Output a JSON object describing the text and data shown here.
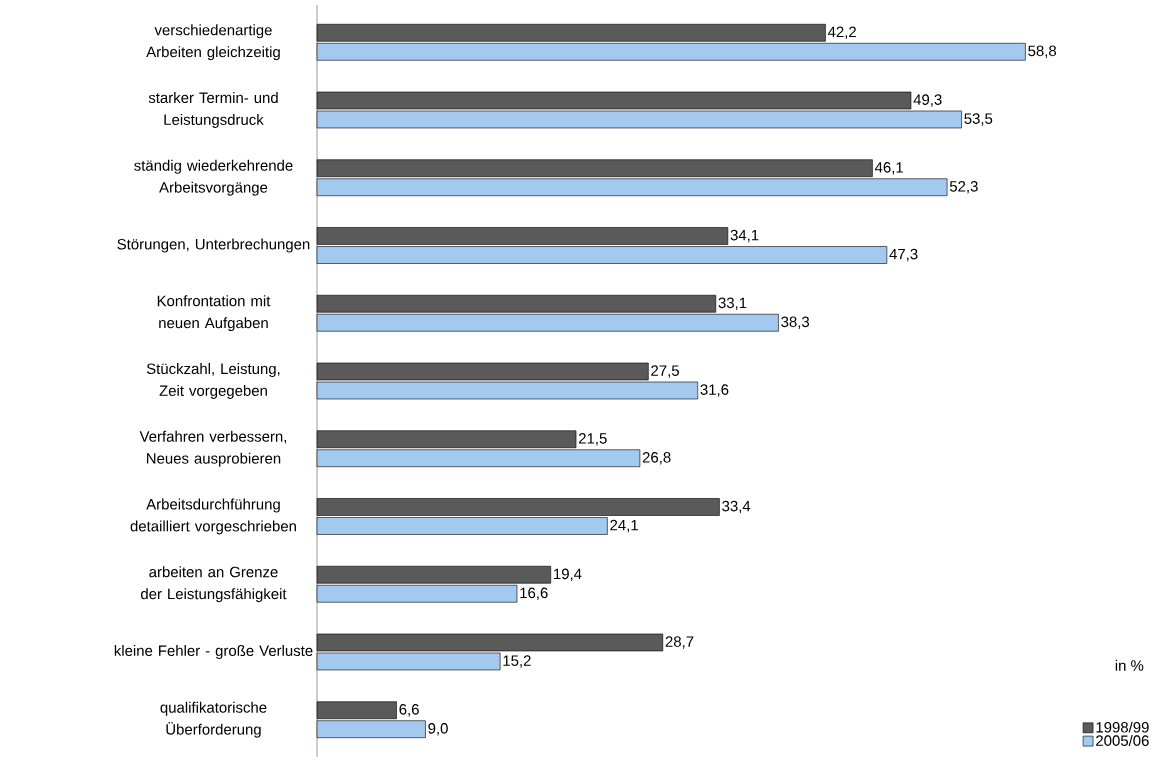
{
  "chart_data": {
    "type": "bar",
    "orientation": "horizontal",
    "categories": [
      "verschiedenartige Arbeiten gleichzeitig",
      "starker Termin- und Leistungsdruck",
      "ständig wiederkehrende Arbeitsvorgänge",
      "Störungen, Unterbrechungen",
      "Konfrontation mit neuen Aufgaben",
      "Stückzahl, Leistung, Zeit vorgegeben",
      "Verfahren verbessern, Neues ausprobieren",
      "Arbeitsdurchführung detailliert vorgeschrieben",
      "arbeiten an Grenze der Leistungsfähigkeit",
      "kleine Fehler - große Verluste",
      "qualifikatorische Überforderung"
    ],
    "series": [
      {
        "name": "1998/99",
        "color": "#5a5a5a",
        "values": [
          42.2,
          49.3,
          46.1,
          34.1,
          33.1,
          27.5,
          21.5,
          33.4,
          19.4,
          28.7,
          6.6
        ],
        "value_labels": [
          "42,2",
          "49,3",
          "46,1",
          "34,1",
          "33,1",
          "27,5",
          "21,5",
          "33,4",
          "19,4",
          "28,7",
          "6,6"
        ]
      },
      {
        "name": "2005/06",
        "color": "#a3c9ee",
        "values": [
          58.8,
          53.5,
          52.3,
          47.3,
          38.3,
          31.6,
          26.8,
          24.1,
          16.6,
          15.2,
          9.0
        ],
        "value_labels": [
          "58,8",
          "53,5",
          "52,3",
          "47,3",
          "38,3",
          "31,6",
          "26,8",
          "24,1",
          "16,6",
          "15,2",
          "9,0"
        ]
      }
    ],
    "tick_labels": "y",
    "legend": "bottom right",
    "annotations": [
      "in %"
    ]
  }
}
